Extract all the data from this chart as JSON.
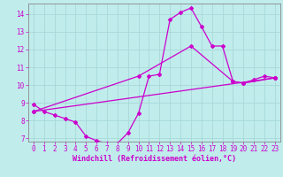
{
  "xlabel": "Windchill (Refroidissement éolien,°C)",
  "bg_color": "#c0ecec",
  "line_color": "#cc00cc",
  "grid_color": "#a8d8d8",
  "xlim": [
    -0.5,
    23.5
  ],
  "ylim": [
    6.8,
    14.6
  ],
  "yticks": [
    7,
    8,
    9,
    10,
    11,
    12,
    13,
    14
  ],
  "xticks": [
    0,
    1,
    2,
    3,
    4,
    5,
    6,
    7,
    8,
    9,
    10,
    11,
    12,
    13,
    14,
    15,
    16,
    17,
    18,
    19,
    20,
    21,
    22,
    23
  ],
  "series1_x": [
    0,
    1,
    2,
    3,
    4,
    5,
    6,
    7,
    8,
    9,
    10,
    11,
    12,
    13,
    14,
    15,
    16,
    17,
    18,
    19,
    20,
    21,
    22,
    23
  ],
  "series1_y": [
    8.9,
    8.5,
    8.3,
    8.1,
    7.9,
    7.1,
    6.85,
    6.7,
    6.7,
    7.3,
    8.4,
    10.5,
    10.6,
    13.7,
    14.1,
    14.35,
    13.3,
    12.2,
    12.2,
    10.2,
    10.1,
    10.3,
    10.5,
    10.4
  ],
  "series2_x": [
    0,
    23
  ],
  "series2_y": [
    8.5,
    10.4
  ],
  "series3_x": [
    0,
    10,
    15,
    19,
    20,
    23
  ],
  "series3_y": [
    8.5,
    10.5,
    12.2,
    10.2,
    10.1,
    10.4
  ],
  "tick_fontsize": 5.5,
  "xlabel_fontsize": 6.0
}
